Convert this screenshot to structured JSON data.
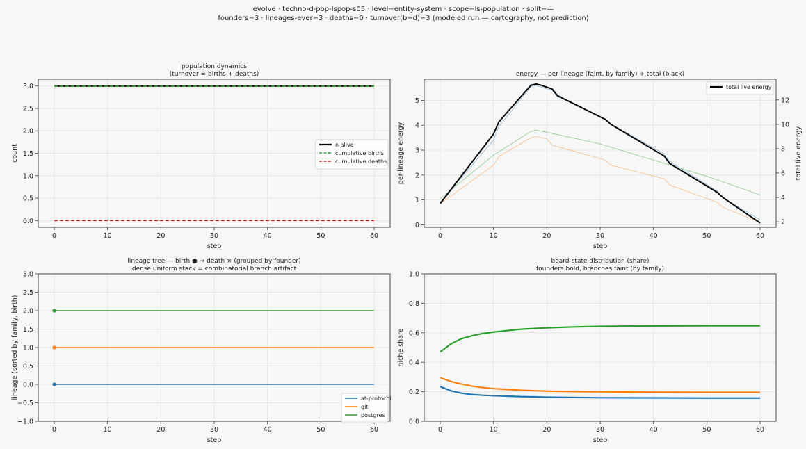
{
  "figure": {
    "suptitle_line1": "evolve · techno-d-pop-lspop-s05 · level=entity-system · scope=ls-population · split=—",
    "suptitle_line2": "founders=3 · lineages-ever=3 · deaths=0 · turnover(b+d)=3   (modeled run — cartography, not prediction)"
  },
  "chart_data": [
    {
      "id": "population",
      "type": "line",
      "title": "population dynamics",
      "subtitle": "(turnover = births + deaths)",
      "xlabel": "step",
      "ylabel": "count",
      "xlim": [
        -3,
        63
      ],
      "ylim": [
        -0.15,
        3.15
      ],
      "xticks": [
        0,
        10,
        20,
        30,
        40,
        50,
        60
      ],
      "yticks": [
        0.0,
        0.5,
        1.0,
        1.5,
        2.0,
        2.5,
        3.0
      ],
      "ytick_labels": [
        "0.0",
        "0.5",
        "1.0",
        "1.5",
        "2.0",
        "2.5",
        "3.0"
      ],
      "grid": true,
      "legend_position": "right",
      "series": [
        {
          "name": "n alive",
          "color": "#000000",
          "style": "solid",
          "width": 2.2,
          "x": [
            0,
            60
          ],
          "y": [
            3,
            3
          ]
        },
        {
          "name": "cumulative births",
          "color": "#2ca02c",
          "style": "dashed",
          "width": 1.5,
          "x": [
            0,
            60
          ],
          "y": [
            3,
            3
          ]
        },
        {
          "name": "cumulative deaths",
          "color": "#d62728",
          "style": "dashed",
          "width": 1.5,
          "x": [
            0,
            60
          ],
          "y": [
            0,
            0
          ]
        }
      ]
    },
    {
      "id": "energy",
      "type": "line",
      "title": "energy — per lineage (faint, by family) + total (black)",
      "xlabel": "step",
      "ylabel": "per-lineage energy",
      "ylabel_right": "total live energy",
      "xlim": [
        -3,
        63
      ],
      "ylim": [
        -0.1,
        5.85
      ],
      "ylim_right": [
        1.55,
        13.7
      ],
      "xticks": [
        0,
        10,
        20,
        30,
        40,
        50,
        60
      ],
      "yticks": [
        0,
        1,
        2,
        3,
        4,
        5
      ],
      "ytick_labels": [
        "0",
        "1",
        "2",
        "3",
        "4",
        "5"
      ],
      "yticks_right": [
        2,
        4,
        6,
        8,
        10,
        12
      ],
      "ytick_labels_right": [
        "2",
        "4",
        "6",
        "8",
        "10",
        "12"
      ],
      "grid": true,
      "legend_position": "top-right",
      "series": [
        {
          "family": "at-protocol",
          "color": "#1f77b4",
          "width": 0.7,
          "opacity": 0.55,
          "axis": "left",
          "x": [
            0,
            10,
            11,
            17,
            18,
            21,
            22,
            31,
            32,
            42,
            43,
            52,
            53,
            60
          ],
          "y": [
            0.9,
            3.4,
            3.95,
            5.55,
            5.6,
            5.4,
            5.15,
            4.25,
            4.05,
            2.85,
            2.55,
            1.35,
            1.1,
            0.2
          ]
        },
        {
          "family": "git",
          "color": "#ff7f0e",
          "width": 0.7,
          "opacity": 0.55,
          "axis": "left",
          "x": [
            0,
            10,
            11,
            17,
            18,
            20,
            21,
            31,
            32,
            42,
            43,
            52,
            53,
            60
          ],
          "y": [
            0.85,
            2.4,
            2.75,
            3.5,
            3.55,
            3.45,
            3.2,
            2.6,
            2.4,
            1.85,
            1.6,
            0.9,
            0.7,
            0.1
          ]
        },
        {
          "family": "postgres",
          "color": "#2ca02c",
          "width": 0.7,
          "opacity": 0.6,
          "axis": "left",
          "x": [
            0,
            10,
            17,
            18,
            20,
            30,
            40,
            50,
            60
          ],
          "y": [
            1.05,
            2.8,
            3.75,
            3.8,
            3.72,
            3.25,
            2.6,
            1.95,
            1.2
          ]
        },
        {
          "name": "total live energy",
          "color": "#000000",
          "width": 2.0,
          "axis": "right",
          "x": [
            0,
            10,
            11,
            17,
            18,
            19,
            21,
            22,
            31,
            32,
            42,
            43,
            52,
            53,
            60
          ],
          "y": [
            3.5,
            9.2,
            10.2,
            13.2,
            13.3,
            13.2,
            12.9,
            12.35,
            10.4,
            10.0,
            7.4,
            6.8,
            4.4,
            4.0,
            1.9
          ]
        }
      ]
    },
    {
      "id": "lineage",
      "type": "line",
      "title": "lineage tree — birth ● → death ×  (grouped by founder)",
      "subtitle": "dense uniform stack = combinatorial branch artifact",
      "xlabel": "step",
      "ylabel": "lineage (sorted by family, birth)",
      "xlim": [
        -3,
        63
      ],
      "ylim": [
        -1.0,
        3.0
      ],
      "xticks": [
        0,
        10,
        20,
        30,
        40,
        50,
        60
      ],
      "yticks": [
        -1.0,
        -0.5,
        0.0,
        0.5,
        1.0,
        1.5,
        2.0,
        2.5,
        3.0
      ],
      "ytick_labels": [
        "−1.0",
        "−0.5",
        "0.0",
        "0.5",
        "1.0",
        "1.5",
        "2.0",
        "2.5",
        "3.0"
      ],
      "grid": true,
      "legend_position": "bottom-right",
      "series": [
        {
          "name": "at-protocol",
          "color": "#1f77b4",
          "width": 1.4,
          "x": [
            0,
            60
          ],
          "y": [
            0,
            0
          ],
          "birth": [
            0,
            0
          ]
        },
        {
          "name": "git",
          "color": "#ff7f0e",
          "width": 1.4,
          "x": [
            0,
            60
          ],
          "y": [
            1,
            1
          ],
          "birth": [
            0,
            1
          ]
        },
        {
          "name": "postgres",
          "color": "#2ca02c",
          "width": 1.4,
          "x": [
            0,
            60
          ],
          "y": [
            2,
            2
          ],
          "birth": [
            0,
            2
          ]
        }
      ]
    },
    {
      "id": "board",
      "type": "line",
      "title": "board-state distribution (share)",
      "subtitle": "founders bold, branches faint (by family)",
      "xlabel": "step",
      "ylabel": "niche share",
      "xlim": [
        -3,
        63
      ],
      "ylim": [
        0.0,
        1.0
      ],
      "xticks": [
        0,
        10,
        20,
        30,
        40,
        50,
        60
      ],
      "yticks": [
        0.0,
        0.2,
        0.4,
        0.6,
        0.8,
        1.0
      ],
      "ytick_labels": [
        "0.0",
        "0.2",
        "0.4",
        "0.6",
        "0.8",
        "1.0"
      ],
      "grid": true,
      "series": [
        {
          "family": "postgres",
          "color": "#2ca02c",
          "width": 2.2,
          "x": [
            0,
            2,
            4,
            6,
            8,
            10,
            15,
            20,
            25,
            30,
            40,
            50,
            60
          ],
          "y": [
            0.47,
            0.525,
            0.56,
            0.58,
            0.595,
            0.605,
            0.624,
            0.634,
            0.64,
            0.644,
            0.647,
            0.648,
            0.648
          ]
        },
        {
          "family": "git",
          "color": "#ff7f0e",
          "width": 2.2,
          "x": [
            0,
            2,
            4,
            6,
            8,
            10,
            15,
            20,
            25,
            30,
            40,
            50,
            60
          ],
          "y": [
            0.295,
            0.27,
            0.252,
            0.238,
            0.228,
            0.221,
            0.21,
            0.204,
            0.201,
            0.199,
            0.197,
            0.196,
            0.196
          ]
        },
        {
          "family": "at-protocol",
          "color": "#1f77b4",
          "width": 2.2,
          "x": [
            0,
            2,
            4,
            6,
            8,
            10,
            15,
            20,
            25,
            30,
            40,
            50,
            60
          ],
          "y": [
            0.235,
            0.206,
            0.19,
            0.181,
            0.176,
            0.173,
            0.167,
            0.163,
            0.161,
            0.159,
            0.158,
            0.157,
            0.157
          ]
        }
      ]
    }
  ]
}
